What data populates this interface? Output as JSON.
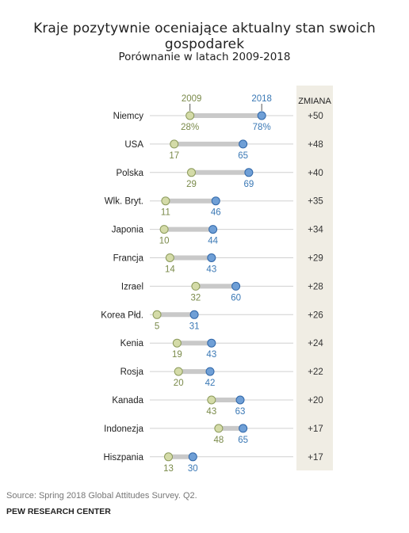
{
  "title": "Kraje pozytywnie oceniające aktualny stan swoich gospodarek",
  "subtitle": "Porównanie w latach 2009-2018",
  "source": "Source: Spring 2018 Global Attitudes Survey. Q2.",
  "org": "PEW RESEARCH CENTER",
  "colors": {
    "y2009": "#d4dba8",
    "y2009_stroke": "#8b9a5b",
    "y2009_text": "#7a8a4a",
    "y2018": "#6f9fd6",
    "y2018_stroke": "#2f66a8",
    "y2018_text": "#3a78b5",
    "change_band": "#f0ede4",
    "bar": "#c9c9c9",
    "axis_line": "#d0d0d0"
  },
  "chart_data": {
    "type": "dumbbell",
    "series": [
      {
        "name": "2009",
        "values": [
          28,
          17,
          29,
          11,
          10,
          14,
          32,
          5,
          19,
          20,
          43,
          48,
          13
        ]
      },
      {
        "name": "2018",
        "values": [
          78,
          65,
          69,
          46,
          44,
          43,
          60,
          31,
          43,
          42,
          63,
          65,
          30
        ]
      }
    ],
    "categories": [
      "Niemcy",
      "USA",
      "Polska",
      "Wlk. Bryt.",
      "Japonia",
      "Francja",
      "Izrael",
      "Korea Płd.",
      "Kenia",
      "Rosja",
      "Kanada",
      "Indonezja",
      "Hiszpania"
    ],
    "first_row_labels": [
      "28%",
      "78%"
    ],
    "change_header": "ZMIANA",
    "change": [
      "+50",
      "+48",
      "+40",
      "+35",
      "+34",
      "+29",
      "+28",
      "+26",
      "+24",
      "+22",
      "+20",
      "+17",
      "+17"
    ],
    "xlim": [
      0,
      100
    ]
  }
}
